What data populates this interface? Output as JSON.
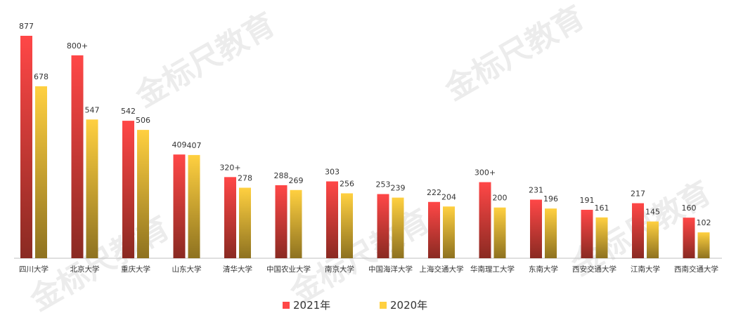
{
  "watermark_text": "金标尺教育",
  "chart_data": {
    "type": "bar",
    "categories": [
      "四川大学",
      "北京大学",
      "重庆大学",
      "山东大学",
      "清华大学",
      "中国农业大学",
      "南京大学",
      "中国海洋大学",
      "上海交通大学",
      "华南理工大学",
      "东南大学",
      "西安交通大学",
      "江南大学",
      "西南交通大学"
    ],
    "series": [
      {
        "name": "2021年",
        "values": [
          877,
          800,
          542,
          409,
          320,
          288,
          303,
          253,
          222,
          300,
          231,
          191,
          217,
          160
        ],
        "labels": [
          "877",
          "800+",
          "542",
          "409",
          "320+",
          "288",
          "303",
          "253",
          "222",
          "300+",
          "231",
          "191",
          "217",
          "160"
        ],
        "color_top": "#ff4747",
        "color_bottom": "#8a2a22"
      },
      {
        "name": "2020年",
        "values": [
          678,
          547,
          506,
          407,
          278,
          269,
          256,
          239,
          204,
          200,
          196,
          161,
          145,
          102
        ],
        "labels": [
          "678",
          "547",
          "506",
          "407",
          "278",
          "269",
          "256",
          "239",
          "204",
          "200",
          "196",
          "161",
          "145",
          "102"
        ],
        "color_top": "#ffd040",
        "color_bottom": "#8e7220"
      }
    ],
    "ylim": [
      0,
      877
    ],
    "legend_position": "bottom",
    "grid": false,
    "xlabel": "",
    "ylabel": ""
  }
}
